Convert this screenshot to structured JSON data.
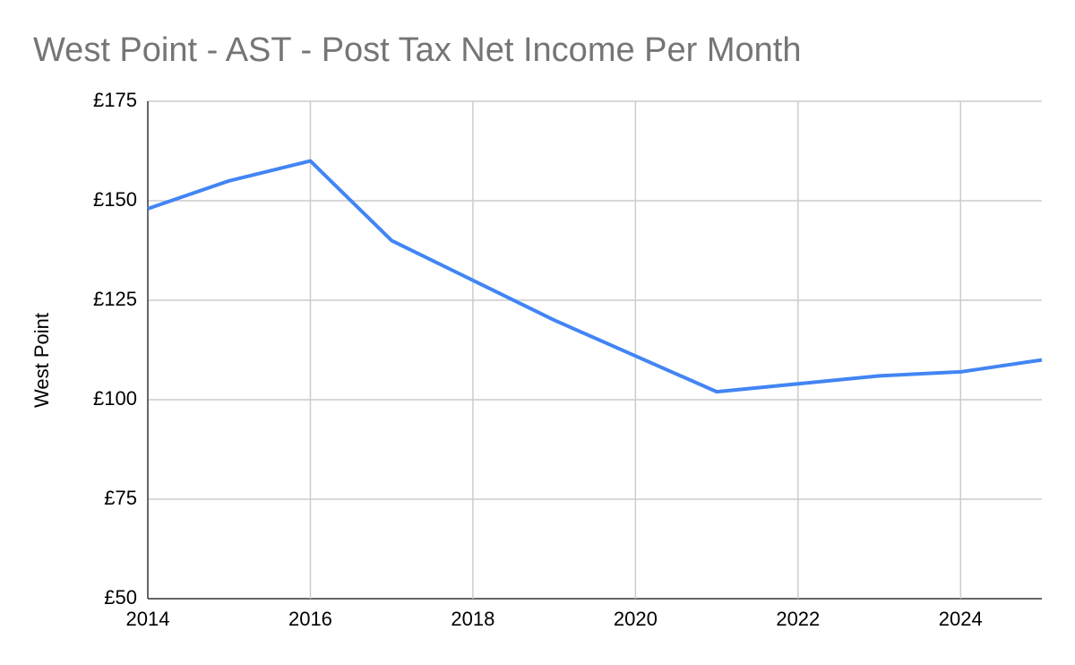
{
  "chart_data": {
    "type": "line",
    "title": "West Point - AST - Post Tax Net Income Per Month",
    "y_label": "West Point",
    "x": [
      2014,
      2015,
      2016,
      2017,
      2018,
      2019,
      2020,
      2021,
      2022,
      2023,
      2024,
      2025
    ],
    "values": [
      148,
      155,
      160,
      140,
      130,
      120,
      111,
      102,
      104,
      106,
      107,
      110
    ],
    "color": "#4285f4",
    "xlim": [
      2014,
      2025
    ],
    "xticks": [
      2014,
      2016,
      2018,
      2020,
      2022,
      2024
    ],
    "ylim": [
      50,
      175
    ],
    "yticks": [
      {
        "value": 50,
        "label": "£50"
      },
      {
        "value": 75,
        "label": "£75"
      },
      {
        "value": 100,
        "label": "£100"
      },
      {
        "value": 125,
        "label": "£125"
      },
      {
        "value": 150,
        "label": "£150"
      },
      {
        "value": 175,
        "label": "£175"
      }
    ],
    "grid": true
  }
}
